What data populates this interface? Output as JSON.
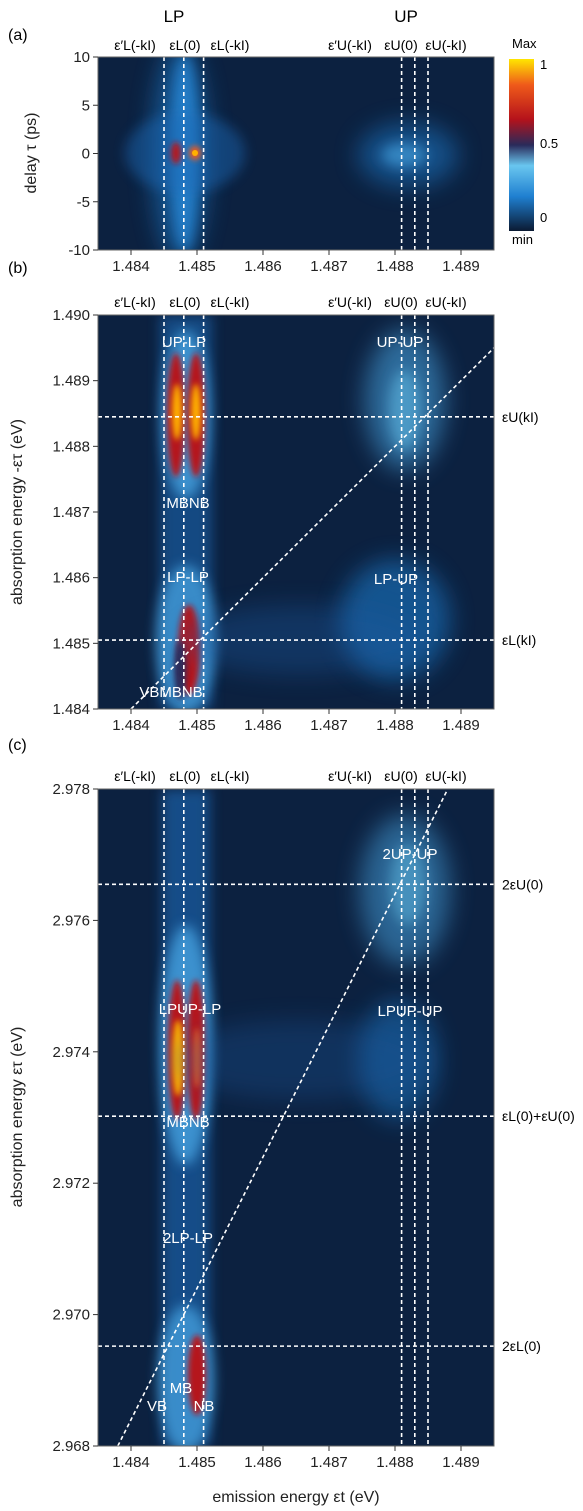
{
  "colors": {
    "background": "#0c2140",
    "guide": "#ffffff",
    "map": [
      "#0b1a33",
      "#0e3a6e",
      "#1f7fd0",
      "#69c6ef",
      "#2a2a5a",
      "#b5121b",
      "#ef5a1a",
      "#ffe600"
    ]
  },
  "group_labels": {
    "lp": "LP",
    "up": "UP"
  },
  "chart_data": [
    {
      "panel": "(a)",
      "type": "heatmap",
      "xlabel": "",
      "ylabel": "delay τ (ps)",
      "xlim": [
        1.4835,
        1.4895
      ],
      "ylim": [
        -10,
        10
      ],
      "x_ticks": [
        "1.484",
        "1.485",
        "1.486",
        "1.487",
        "1.488",
        "1.489"
      ],
      "y_ticks": [
        "10",
        "5",
        "0",
        "-5",
        "-10"
      ],
      "top_labels": [
        "ε′L(-kI)",
        "εL(0)",
        "εL(-kI)",
        "ε′U(-kI)",
        "εU(0)",
        "εU(-kI)"
      ],
      "vlines": [
        1.4845,
        1.4848,
        1.4851,
        1.4881,
        1.4883,
        1.4885
      ],
      "colorbar": {
        "top": "Max",
        "mid": "0.5",
        "bottom": "min",
        "ticks": [
          "1",
          "0.5",
          "0"
        ]
      }
    },
    {
      "panel": "(b)",
      "type": "heatmap",
      "xlabel": "",
      "ylabel": "absorption energy -ετ (eV)",
      "xlim": [
        1.4835,
        1.4895
      ],
      "ylim": [
        1.484,
        1.49
      ],
      "x_ticks": [
        "1.484",
        "1.485",
        "1.486",
        "1.487",
        "1.488",
        "1.489"
      ],
      "y_ticks": [
        "1.490",
        "1.489",
        "1.488",
        "1.487",
        "1.486",
        "1.485",
        "1.484"
      ],
      "top_labels": [
        "ε′L(-kI)",
        "εL(0)",
        "εL(-kI)",
        "ε′U(-kI)",
        "εU(0)",
        "εU(-kI)"
      ],
      "vlines": [
        1.4845,
        1.4848,
        1.4851,
        1.4881,
        1.4883,
        1.4885
      ],
      "hlines": [
        {
          "y": 1.48845,
          "label": "εU(kI)"
        },
        {
          "y": 1.48505,
          "label": "εL(kI)"
        }
      ],
      "diagonal": [
        [
          1.484,
          1.484
        ],
        [
          1.4895,
          1.4895
        ]
      ],
      "annotations": [
        "UP-LP",
        "UP-UP",
        "MBNB",
        "LP-LP",
        "LP-UP",
        "VBMBNB"
      ]
    },
    {
      "panel": "(c)",
      "type": "heatmap",
      "xlabel": "emission energy εt (eV)",
      "ylabel": "absorption energy ετ (eV)",
      "xlim": [
        1.4835,
        1.4895
      ],
      "ylim": [
        2.968,
        2.978
      ],
      "x_ticks": [
        "1.484",
        "1.485",
        "1.486",
        "1.487",
        "1.488",
        "1.489"
      ],
      "y_ticks": [
        "2.978",
        "2.976",
        "2.974",
        "2.972",
        "2.970",
        "2.968"
      ],
      "top_labels": [
        "ε′L(-kI)",
        "εL(0)",
        "εL(-kI)",
        "ε′U(-kI)",
        "εU(0)",
        "εU(-kI)"
      ],
      "vlines": [
        1.4845,
        1.4848,
        1.4851,
        1.4881,
        1.4883,
        1.4885
      ],
      "hlines": [
        {
          "y": 2.97655,
          "label": "2εU(0)"
        },
        {
          "y": 2.97302,
          "label": "εL(0)+εU(0)"
        },
        {
          "y": 2.96952,
          "label": "2εL(0)"
        }
      ],
      "diagonal": [
        [
          1.4838,
          2.968
        ],
        [
          1.4888,
          2.978
        ]
      ],
      "annotations": [
        "2UP-UP",
        "LPUP-LP",
        "LPUP-UP",
        "MBNB",
        "2LP-LP",
        "MB",
        "VB",
        "NB"
      ]
    }
  ]
}
